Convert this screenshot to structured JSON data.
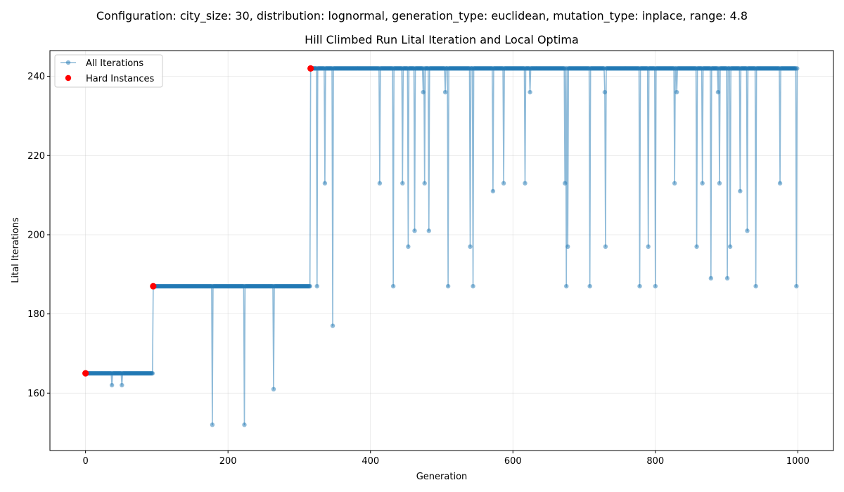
{
  "chart_data": {
    "type": "line",
    "suptitle": "Configuration: city_size: 30, distribution: lognormal, generation_type: euclidean, mutation_type: inplace, range: 4.8",
    "title": "Hill Climbed Run Lital Iteration and Local Optima",
    "xlabel": "Generation",
    "ylabel": "Lital Iterations",
    "xlim": [
      -50,
      1050
    ],
    "ylim": [
      145.5,
      246.5
    ],
    "xticks": [
      0,
      200,
      400,
      600,
      800,
      1000
    ],
    "yticks": [
      160,
      180,
      200,
      220,
      240
    ],
    "grid": true,
    "legend_position": "top-left",
    "colors": {
      "line": "#1f77b4",
      "hard": "#ff0000"
    },
    "series": [
      {
        "name": "All Iterations",
        "kind": "line-markers",
        "plateaus": [
          {
            "from": 0,
            "to": 94,
            "value": 165
          },
          {
            "from": 95,
            "to": 315,
            "value": 187
          },
          {
            "from": 316,
            "to": 999,
            "value": 242
          }
        ],
        "dips": [
          [
            37,
            162
          ],
          [
            51,
            162
          ],
          [
            178,
            152
          ],
          [
            223,
            152
          ],
          [
            264,
            161
          ],
          [
            325,
            187
          ],
          [
            336,
            213
          ],
          [
            347,
            177
          ],
          [
            413,
            213
          ],
          [
            432,
            187
          ],
          [
            445,
            213
          ],
          [
            453,
            197
          ],
          [
            462,
            201
          ],
          [
            474,
            236
          ],
          [
            476,
            213
          ],
          [
            482,
            201
          ],
          [
            505,
            236
          ],
          [
            509,
            187
          ],
          [
            540,
            197
          ],
          [
            544,
            187
          ],
          [
            572,
            211
          ],
          [
            587,
            213
          ],
          [
            617,
            213
          ],
          [
            624,
            236
          ],
          [
            673,
            213
          ],
          [
            675,
            187
          ],
          [
            677,
            197
          ],
          [
            708,
            187
          ],
          [
            729,
            236
          ],
          [
            730,
            197
          ],
          [
            778,
            187
          ],
          [
            790,
            197
          ],
          [
            800,
            187
          ],
          [
            827,
            213
          ],
          [
            830,
            236
          ],
          [
            858,
            197
          ],
          [
            866,
            213
          ],
          [
            878,
            189
          ],
          [
            888,
            236
          ],
          [
            890,
            213
          ],
          [
            901,
            189
          ],
          [
            905,
            197
          ],
          [
            919,
            211
          ],
          [
            929,
            201
          ],
          [
            941,
            187
          ],
          [
            975,
            213
          ],
          [
            998,
            187
          ]
        ]
      },
      {
        "name": "Hard Instances",
        "kind": "scatter",
        "points": [
          [
            0,
            165
          ],
          [
            95,
            187
          ],
          [
            316,
            242
          ]
        ]
      }
    ]
  }
}
